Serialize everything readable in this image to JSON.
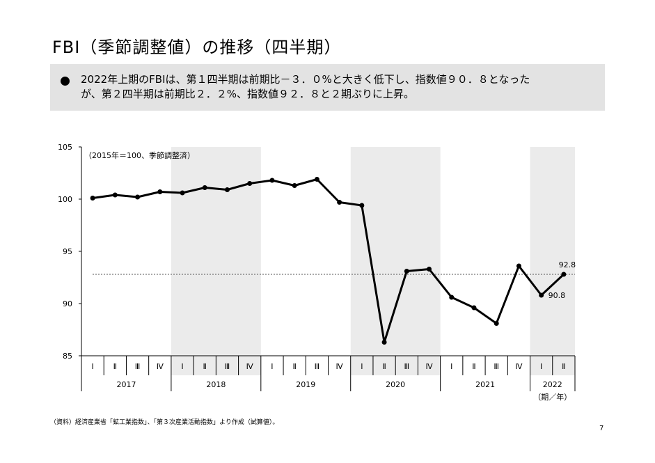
{
  "slide": {
    "title": "FBI（季節調整値）の推移（四半期）",
    "summary_line1": "2022年上期のFBIは、第１四半期は前期比－３．０%と大きく低下し、指数値９０．８となった",
    "summary_line2": "が、第２四半期は前期比２．２%、指数値９２．８と２期ぶりに上昇。",
    "source": "（資料）経済産業省「鉱工業指数」、「第３次産業活動指数」より作成（試算値）。",
    "page_number": "7"
  },
  "chart_data": {
    "type": "line",
    "unit_note": "（2015年＝100、季節調整済）",
    "x_unit_label": "（期／年）",
    "quarters": [
      "Ⅰ",
      "Ⅱ",
      "Ⅲ",
      "Ⅳ",
      "Ⅰ",
      "Ⅱ",
      "Ⅲ",
      "Ⅳ",
      "Ⅰ",
      "Ⅱ",
      "Ⅲ",
      "Ⅳ",
      "Ⅰ",
      "Ⅱ",
      "Ⅲ",
      "Ⅳ",
      "Ⅰ",
      "Ⅱ",
      "Ⅲ",
      "Ⅳ",
      "Ⅰ",
      "Ⅱ"
    ],
    "years": [
      {
        "label": "2017",
        "count": 4,
        "shaded": false
      },
      {
        "label": "2018",
        "count": 4,
        "shaded": true
      },
      {
        "label": "2019",
        "count": 4,
        "shaded": false
      },
      {
        "label": "2020",
        "count": 4,
        "shaded": true
      },
      {
        "label": "2021",
        "count": 4,
        "shaded": false
      },
      {
        "label": "2022",
        "count": 2,
        "shaded": true
      }
    ],
    "values": [
      100.1,
      100.4,
      100.2,
      100.7,
      100.6,
      101.1,
      100.9,
      101.5,
      101.8,
      101.3,
      101.9,
      99.7,
      99.4,
      86.3,
      93.1,
      93.3,
      90.6,
      89.6,
      88.1,
      93.6,
      90.8,
      92.8
    ],
    "ylim": [
      85,
      105
    ],
    "yticks": [
      85,
      90,
      95,
      100,
      105
    ],
    "reference_line": 92.8,
    "data_labels": [
      {
        "index": 21,
        "text": "92.8",
        "pos": "above"
      },
      {
        "index": 20,
        "text": "90.8",
        "pos": "below-right"
      }
    ],
    "colors": {
      "line": "#000000",
      "shade": "#ebebeb",
      "reference": "#555555"
    }
  }
}
